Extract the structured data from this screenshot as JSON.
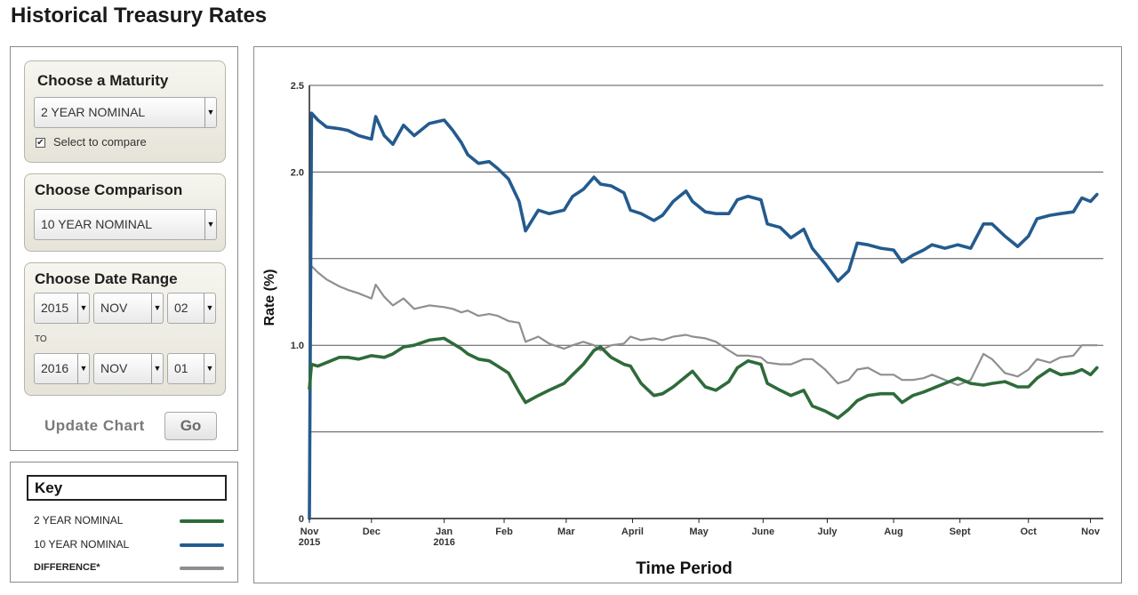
{
  "page": {
    "title": "Historical Treasury Rates"
  },
  "controls": {
    "maturity": {
      "title": "Choose a Maturity",
      "selected": "2 YEAR NOMINAL",
      "compare_checked": true,
      "compare_check_glyph": "✔",
      "compare_label": "Select to compare"
    },
    "comparison": {
      "title": "Choose Comparison",
      "selected": "10 YEAR NOMINAL"
    },
    "date_range": {
      "title": "Choose Date Range",
      "from": {
        "year": "2015",
        "month": "NOV",
        "day": "02"
      },
      "to_label": "TO",
      "to": {
        "year": "2016",
        "month": "NOV",
        "day": "01"
      }
    },
    "update_label": "Update Chart",
    "go_label": "Go",
    "dropdown_arrow": "▼"
  },
  "key": {
    "title": "Key",
    "items": [
      {
        "label": "2 YEAR NOMINAL",
        "color": "#2e6b3a"
      },
      {
        "label": "10 YEAR NOMINAL",
        "color": "#245b8e"
      },
      {
        "label": "DIFFERENCE*",
        "color": "#8f8f8f"
      }
    ]
  },
  "chart_data": {
    "type": "line",
    "title": "",
    "xlabel": "Time Period",
    "ylabel": "Rate (%)",
    "ylim": [
      0,
      2.5
    ],
    "yticks": [
      0,
      0.5,
      1.0,
      1.5,
      2.0,
      2.5
    ],
    "ytick_labels": [
      "0",
      "",
      "1.0",
      "",
      "2.0",
      "2.5"
    ],
    "grid": true,
    "x_ticks": [
      {
        "date": "2015-11-02",
        "label": "Nov",
        "sub": "2015"
      },
      {
        "date": "2015-12-01",
        "label": "Dec",
        "sub": ""
      },
      {
        "date": "2016-01-04",
        "label": "Jan",
        "sub": "2016"
      },
      {
        "date": "2016-02-01",
        "label": "Feb",
        "sub": ""
      },
      {
        "date": "2016-03-01",
        "label": "Mar",
        "sub": ""
      },
      {
        "date": "2016-04-01",
        "label": "April",
        "sub": ""
      },
      {
        "date": "2016-05-02",
        "label": "May",
        "sub": ""
      },
      {
        "date": "2016-06-01",
        "label": "June",
        "sub": ""
      },
      {
        "date": "2016-07-01",
        "label": "July",
        "sub": ""
      },
      {
        "date": "2016-08-01",
        "label": "Aug",
        "sub": ""
      },
      {
        "date": "2016-09-01",
        "label": "Sept",
        "sub": ""
      },
      {
        "date": "2016-10-03",
        "label": "Oct",
        "sub": ""
      },
      {
        "date": "2016-11-01",
        "label": "Nov",
        "sub": ""
      }
    ],
    "xlim": [
      "2015-11-02",
      "2016-11-07"
    ],
    "series": [
      {
        "name": "2 YEAR NOMINAL",
        "color": "#2e6b3a",
        "points": [
          [
            "2015-11-02",
            0.75
          ],
          [
            "2015-11-03",
            0.89
          ],
          [
            "2015-11-06",
            0.88
          ],
          [
            "2015-11-10",
            0.9
          ],
          [
            "2015-11-16",
            0.93
          ],
          [
            "2015-11-20",
            0.93
          ],
          [
            "2015-11-25",
            0.92
          ],
          [
            "2015-12-01",
            0.94
          ],
          [
            "2015-12-07",
            0.93
          ],
          [
            "2015-12-11",
            0.95
          ],
          [
            "2015-12-16",
            0.99
          ],
          [
            "2015-12-21",
            1.0
          ],
          [
            "2015-12-28",
            1.03
          ],
          [
            "2016-01-04",
            1.04
          ],
          [
            "2016-01-08",
            1.01
          ],
          [
            "2016-01-12",
            0.98
          ],
          [
            "2016-01-15",
            0.95
          ],
          [
            "2016-01-20",
            0.92
          ],
          [
            "2016-01-25",
            0.91
          ],
          [
            "2016-01-29",
            0.88
          ],
          [
            "2016-02-03",
            0.84
          ],
          [
            "2016-02-08",
            0.73
          ],
          [
            "2016-02-11",
            0.67
          ],
          [
            "2016-02-17",
            0.71
          ],
          [
            "2016-02-22",
            0.74
          ],
          [
            "2016-02-29",
            0.78
          ],
          [
            "2016-03-04",
            0.83
          ],
          [
            "2016-03-09",
            0.89
          ],
          [
            "2016-03-14",
            0.97
          ],
          [
            "2016-03-17",
            0.99
          ],
          [
            "2016-03-22",
            0.93
          ],
          [
            "2016-03-28",
            0.89
          ],
          [
            "2016-03-31",
            0.88
          ],
          [
            "2016-04-05",
            0.78
          ],
          [
            "2016-04-11",
            0.71
          ],
          [
            "2016-04-15",
            0.72
          ],
          [
            "2016-04-20",
            0.76
          ],
          [
            "2016-04-26",
            0.82
          ],
          [
            "2016-04-29",
            0.85
          ],
          [
            "2016-05-05",
            0.76
          ],
          [
            "2016-05-10",
            0.74
          ],
          [
            "2016-05-16",
            0.79
          ],
          [
            "2016-05-20",
            0.87
          ],
          [
            "2016-05-25",
            0.91
          ],
          [
            "2016-05-31",
            0.89
          ],
          [
            "2016-06-03",
            0.78
          ],
          [
            "2016-06-09",
            0.74
          ],
          [
            "2016-06-14",
            0.71
          ],
          [
            "2016-06-20",
            0.74
          ],
          [
            "2016-06-24",
            0.65
          ],
          [
            "2016-06-30",
            0.62
          ],
          [
            "2016-07-06",
            0.58
          ],
          [
            "2016-07-11",
            0.63
          ],
          [
            "2016-07-15",
            0.68
          ],
          [
            "2016-07-20",
            0.71
          ],
          [
            "2016-07-26",
            0.72
          ],
          [
            "2016-08-01",
            0.72
          ],
          [
            "2016-08-05",
            0.67
          ],
          [
            "2016-08-10",
            0.71
          ],
          [
            "2016-08-15",
            0.73
          ],
          [
            "2016-08-19",
            0.75
          ],
          [
            "2016-08-25",
            0.78
          ],
          [
            "2016-08-31",
            0.81
          ],
          [
            "2016-09-06",
            0.78
          ],
          [
            "2016-09-12",
            0.77
          ],
          [
            "2016-09-16",
            0.78
          ],
          [
            "2016-09-22",
            0.79
          ],
          [
            "2016-09-28",
            0.76
          ],
          [
            "2016-10-03",
            0.76
          ],
          [
            "2016-10-07",
            0.81
          ],
          [
            "2016-10-13",
            0.86
          ],
          [
            "2016-10-18",
            0.83
          ],
          [
            "2016-10-24",
            0.84
          ],
          [
            "2016-10-28",
            0.86
          ],
          [
            "2016-11-01",
            0.83
          ],
          [
            "2016-11-04",
            0.87
          ]
        ]
      },
      {
        "name": "10 YEAR NOMINAL",
        "color": "#245b8e",
        "points": [
          [
            "2015-11-02",
            0.0
          ],
          [
            "2015-11-03",
            2.34
          ],
          [
            "2015-11-06",
            2.3
          ],
          [
            "2015-11-10",
            2.26
          ],
          [
            "2015-11-16",
            2.25
          ],
          [
            "2015-11-20",
            2.24
          ],
          [
            "2015-11-25",
            2.21
          ],
          [
            "2015-12-01",
            2.19
          ],
          [
            "2015-12-03",
            2.32
          ],
          [
            "2015-12-07",
            2.21
          ],
          [
            "2015-12-11",
            2.16
          ],
          [
            "2015-12-16",
            2.27
          ],
          [
            "2015-12-21",
            2.21
          ],
          [
            "2015-12-28",
            2.28
          ],
          [
            "2016-01-04",
            2.3
          ],
          [
            "2016-01-08",
            2.24
          ],
          [
            "2016-01-12",
            2.17
          ],
          [
            "2016-01-15",
            2.1
          ],
          [
            "2016-01-20",
            2.05
          ],
          [
            "2016-01-25",
            2.06
          ],
          [
            "2016-01-29",
            2.02
          ],
          [
            "2016-02-03",
            1.96
          ],
          [
            "2016-02-08",
            1.83
          ],
          [
            "2016-02-11",
            1.66
          ],
          [
            "2016-02-17",
            1.78
          ],
          [
            "2016-02-22",
            1.76
          ],
          [
            "2016-02-29",
            1.78
          ],
          [
            "2016-03-04",
            1.86
          ],
          [
            "2016-03-09",
            1.9
          ],
          [
            "2016-03-14",
            1.97
          ],
          [
            "2016-03-17",
            1.93
          ],
          [
            "2016-03-22",
            1.92
          ],
          [
            "2016-03-28",
            1.88
          ],
          [
            "2016-03-31",
            1.78
          ],
          [
            "2016-04-05",
            1.76
          ],
          [
            "2016-04-11",
            1.72
          ],
          [
            "2016-04-15",
            1.75
          ],
          [
            "2016-04-20",
            1.83
          ],
          [
            "2016-04-26",
            1.89
          ],
          [
            "2016-04-29",
            1.83
          ],
          [
            "2016-05-05",
            1.77
          ],
          [
            "2016-05-10",
            1.76
          ],
          [
            "2016-05-16",
            1.76
          ],
          [
            "2016-05-20",
            1.84
          ],
          [
            "2016-05-25",
            1.86
          ],
          [
            "2016-05-31",
            1.84
          ],
          [
            "2016-06-03",
            1.7
          ],
          [
            "2016-06-09",
            1.68
          ],
          [
            "2016-06-14",
            1.62
          ],
          [
            "2016-06-20",
            1.67
          ],
          [
            "2016-06-24",
            1.56
          ],
          [
            "2016-06-30",
            1.47
          ],
          [
            "2016-07-06",
            1.37
          ],
          [
            "2016-07-11",
            1.43
          ],
          [
            "2016-07-15",
            1.59
          ],
          [
            "2016-07-20",
            1.58
          ],
          [
            "2016-07-26",
            1.56
          ],
          [
            "2016-08-01",
            1.55
          ],
          [
            "2016-08-05",
            1.48
          ],
          [
            "2016-08-10",
            1.52
          ],
          [
            "2016-08-15",
            1.55
          ],
          [
            "2016-08-19",
            1.58
          ],
          [
            "2016-08-25",
            1.56
          ],
          [
            "2016-08-31",
            1.58
          ],
          [
            "2016-09-06",
            1.56
          ],
          [
            "2016-09-12",
            1.7
          ],
          [
            "2016-09-16",
            1.7
          ],
          [
            "2016-09-22",
            1.63
          ],
          [
            "2016-09-28",
            1.57
          ],
          [
            "2016-10-03",
            1.63
          ],
          [
            "2016-10-07",
            1.73
          ],
          [
            "2016-10-13",
            1.75
          ],
          [
            "2016-10-18",
            1.76
          ],
          [
            "2016-10-24",
            1.77
          ],
          [
            "2016-10-28",
            1.85
          ],
          [
            "2016-11-01",
            1.83
          ],
          [
            "2016-11-04",
            1.87
          ]
        ]
      },
      {
        "name": "DIFFERENCE*",
        "color": "#8f8f8f",
        "points": [
          [
            "2015-11-02",
            1.47
          ],
          [
            "2015-11-06",
            1.42
          ],
          [
            "2015-11-10",
            1.38
          ],
          [
            "2015-11-16",
            1.34
          ],
          [
            "2015-11-20",
            1.32
          ],
          [
            "2015-11-25",
            1.3
          ],
          [
            "2015-12-01",
            1.27
          ],
          [
            "2015-12-03",
            1.35
          ],
          [
            "2015-12-07",
            1.28
          ],
          [
            "2015-12-11",
            1.23
          ],
          [
            "2015-12-16",
            1.27
          ],
          [
            "2015-12-21",
            1.21
          ],
          [
            "2015-12-28",
            1.23
          ],
          [
            "2016-01-04",
            1.22
          ],
          [
            "2016-01-08",
            1.21
          ],
          [
            "2016-01-12",
            1.19
          ],
          [
            "2016-01-15",
            1.2
          ],
          [
            "2016-01-20",
            1.17
          ],
          [
            "2016-01-25",
            1.18
          ],
          [
            "2016-01-29",
            1.17
          ],
          [
            "2016-02-03",
            1.14
          ],
          [
            "2016-02-08",
            1.13
          ],
          [
            "2016-02-11",
            1.02
          ],
          [
            "2016-02-17",
            1.05
          ],
          [
            "2016-02-22",
            1.01
          ],
          [
            "2016-02-29",
            0.98
          ],
          [
            "2016-03-04",
            1.0
          ],
          [
            "2016-03-09",
            1.02
          ],
          [
            "2016-03-14",
            1.0
          ],
          [
            "2016-03-17",
            0.97
          ],
          [
            "2016-03-22",
            1.0
          ],
          [
            "2016-03-28",
            1.01
          ],
          [
            "2016-03-31",
            1.05
          ],
          [
            "2016-04-05",
            1.03
          ],
          [
            "2016-04-11",
            1.04
          ],
          [
            "2016-04-15",
            1.03
          ],
          [
            "2016-04-20",
            1.05
          ],
          [
            "2016-04-26",
            1.06
          ],
          [
            "2016-04-29",
            1.05
          ],
          [
            "2016-05-05",
            1.04
          ],
          [
            "2016-05-10",
            1.02
          ],
          [
            "2016-05-16",
            0.97
          ],
          [
            "2016-05-20",
            0.94
          ],
          [
            "2016-05-25",
            0.94
          ],
          [
            "2016-05-31",
            0.93
          ],
          [
            "2016-06-03",
            0.9
          ],
          [
            "2016-06-09",
            0.89
          ],
          [
            "2016-06-14",
            0.89
          ],
          [
            "2016-06-20",
            0.92
          ],
          [
            "2016-06-24",
            0.92
          ],
          [
            "2016-06-30",
            0.86
          ],
          [
            "2016-07-06",
            0.78
          ],
          [
            "2016-07-11",
            0.8
          ],
          [
            "2016-07-15",
            0.86
          ],
          [
            "2016-07-20",
            0.87
          ],
          [
            "2016-07-26",
            0.83
          ],
          [
            "2016-08-01",
            0.83
          ],
          [
            "2016-08-05",
            0.8
          ],
          [
            "2016-08-10",
            0.8
          ],
          [
            "2016-08-15",
            0.81
          ],
          [
            "2016-08-19",
            0.83
          ],
          [
            "2016-08-25",
            0.8
          ],
          [
            "2016-08-31",
            0.77
          ],
          [
            "2016-09-06",
            0.8
          ],
          [
            "2016-09-12",
            0.95
          ],
          [
            "2016-09-16",
            0.92
          ],
          [
            "2016-09-22",
            0.84
          ],
          [
            "2016-09-28",
            0.82
          ],
          [
            "2016-10-03",
            0.86
          ],
          [
            "2016-10-07",
            0.92
          ],
          [
            "2016-10-13",
            0.9
          ],
          [
            "2016-10-18",
            0.93
          ],
          [
            "2016-10-24",
            0.94
          ],
          [
            "2016-10-28",
            1.0
          ],
          [
            "2016-11-01",
            1.0
          ],
          [
            "2016-11-04",
            1.0
          ]
        ]
      }
    ]
  }
}
